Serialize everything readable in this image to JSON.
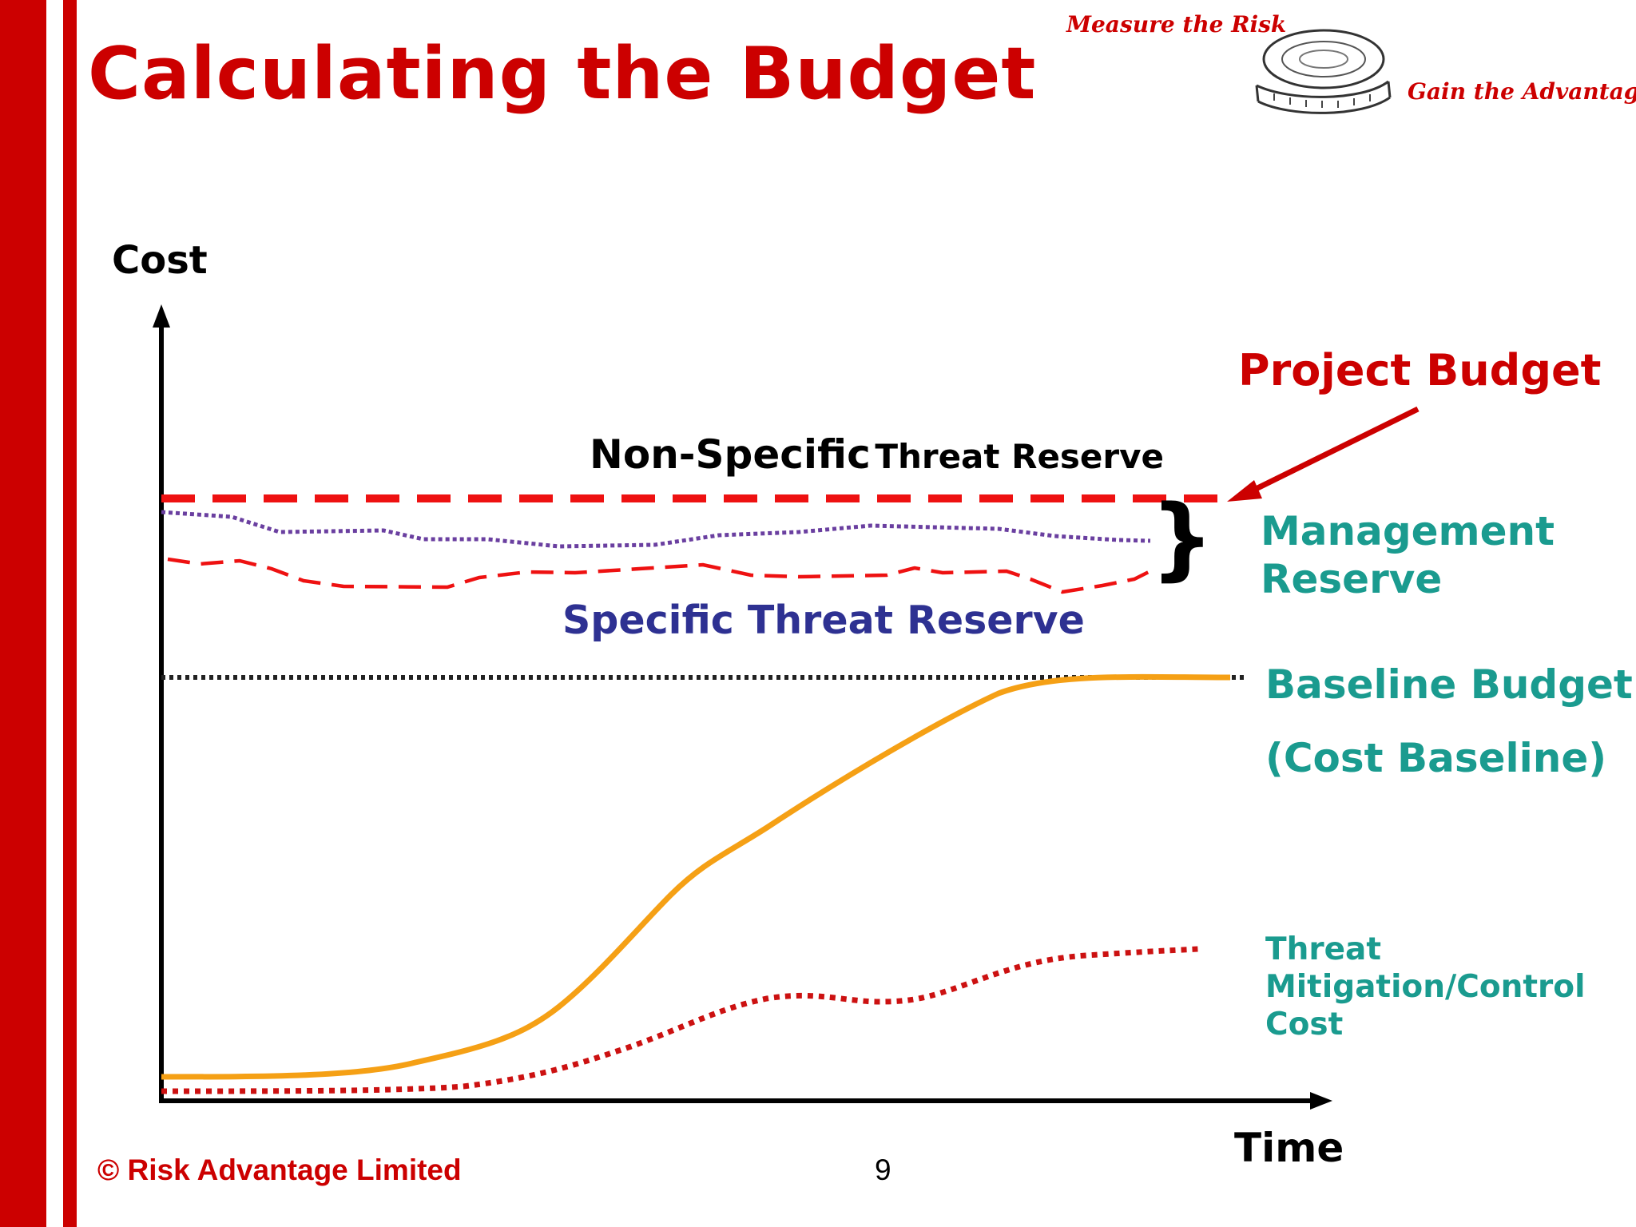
{
  "slide": {
    "title": "Calculating the Budget",
    "tagline_top": "Measure the Risk",
    "tagline_bottom": "Gain the Advantage",
    "logo_icon": "tape-measure-icon",
    "footer": "© Risk Advantage Limited",
    "page_number": "9"
  },
  "diagram": {
    "y_axis_label": "Cost",
    "x_axis_label": "Time",
    "labels": {
      "project_budget": "Project Budget",
      "non_specific_part1": "Non-Specific",
      "non_specific_part2": "Threat Reserve",
      "management_reserve_line1": "Management",
      "management_reserve_line2": "Reserve",
      "specific_threat_reserve": "Specific Threat Reserve",
      "baseline_budget_line1": "Baseline Budget",
      "baseline_budget_line2": "(Cost Baseline)",
      "threat_mitigation_line1": "Threat",
      "threat_mitigation_line2": "Mitigation/Control",
      "threat_mitigation_line3": "Cost",
      "brace": "}"
    },
    "colors": {
      "brand_red": "#cc0000",
      "project_budget_line": "#ee1111",
      "non_specific_line": "#6a3fa0",
      "specific_line": "#ee1111",
      "baseline_line": "#222222",
      "cumulative_cost": "#f5a015",
      "mitigation_cost": "#cc1111",
      "teal_text": "#1a9b8f",
      "navy_text": "#2e3192"
    }
  }
}
